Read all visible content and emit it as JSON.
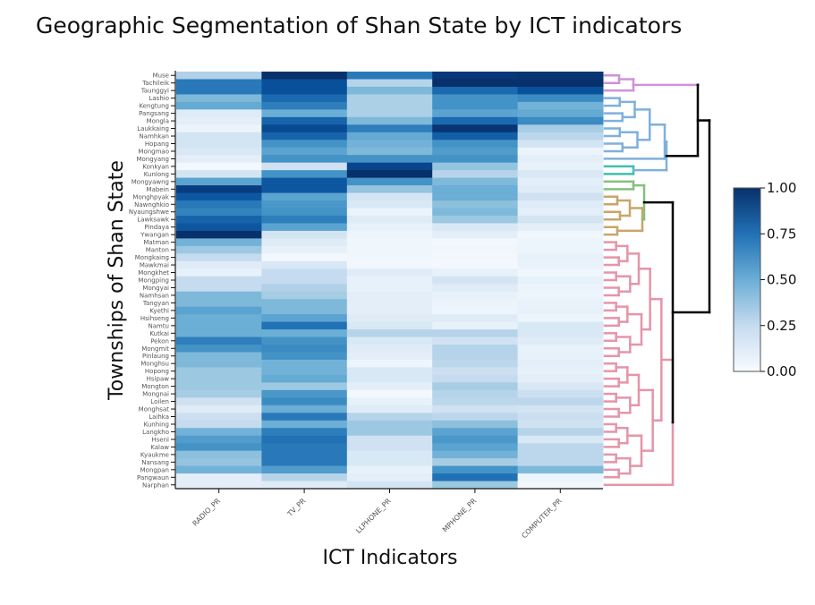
{
  "chart_data": {
    "type": "heatmap",
    "title": "Geographic Segmentation of Shan State by ICT indicators",
    "xlabel": "ICT Indicators",
    "ylabel": "Townships of Shan State",
    "columns": [
      "RADIO_PR",
      "TV_PR",
      "LLPHONE_PR",
      "MPHONE_PR",
      "COMPUTER_PR"
    ],
    "rows": [
      "Muse",
      "Tachileik",
      "Taunggyi",
      "Lashio",
      "Kengtung",
      "Pangsang",
      "Mongla",
      "Laukkaing",
      "Namhkan",
      "Hopang",
      "Mongmao",
      "Mongyang",
      "Konkyan",
      "Kunlong",
      "Mongyawng",
      "Mabein",
      "Monghpyak",
      "Nawnghkio",
      "Nyaungshwe",
      "Lawksawk",
      "Pindaya",
      "Ywangan",
      "Matman",
      "Manton",
      "Mongkaing",
      "Mawkmai",
      "Mongkhet",
      "Mongping",
      "Mongyai",
      "Namhsan",
      "Tangyan",
      "Kyethi",
      "Hsihseng",
      "Namtu",
      "Kutkai",
      "Pekon",
      "Mongmit",
      "Pinlaung",
      "Monghsu",
      "Hopong",
      "Hsipaw",
      "Mongton",
      "Mongnai",
      "Loilen",
      "Monghsat",
      "Laihka",
      "Kunhing",
      "Langkho",
      "Hseni",
      "Kalaw",
      "Kyaukme",
      "Nansang",
      "Mongpan",
      "Pangwaun",
      "Narphan"
    ],
    "values": [
      [
        0.32,
        1.0,
        0.72,
        0.97,
        0.98
      ],
      [
        0.72,
        0.88,
        0.3,
        1.0,
        1.0
      ],
      [
        0.72,
        0.88,
        0.45,
        0.78,
        0.88
      ],
      [
        0.45,
        0.78,
        0.33,
        0.62,
        0.65
      ],
      [
        0.52,
        0.7,
        0.33,
        0.62,
        0.48
      ],
      [
        0.12,
        0.5,
        0.33,
        0.55,
        0.52
      ],
      [
        0.1,
        0.8,
        0.45,
        0.78,
        0.65
      ],
      [
        0.06,
        0.9,
        0.7,
        0.98,
        0.35
      ],
      [
        0.18,
        0.8,
        0.52,
        0.82,
        0.28
      ],
      [
        0.18,
        0.62,
        0.48,
        0.62,
        0.18
      ],
      [
        0.15,
        0.55,
        0.45,
        0.58,
        0.06
      ],
      [
        0.1,
        0.62,
        0.62,
        0.62,
        0.1
      ],
      [
        0.02,
        0.2,
        0.92,
        0.4,
        0.08
      ],
      [
        0.18,
        0.62,
        1.0,
        0.3,
        0.15
      ],
      [
        0.55,
        0.85,
        0.62,
        0.45,
        0.1
      ],
      [
        0.95,
        0.85,
        0.4,
        0.5,
        0.12
      ],
      [
        0.85,
        0.55,
        0.18,
        0.5,
        0.2
      ],
      [
        0.72,
        0.6,
        0.15,
        0.42,
        0.12
      ],
      [
        0.68,
        0.62,
        0.06,
        0.45,
        0.1
      ],
      [
        0.8,
        0.7,
        0.12,
        0.38,
        0.18
      ],
      [
        0.85,
        0.55,
        0.08,
        0.15,
        0.1
      ],
      [
        1.0,
        0.18,
        0.05,
        0.1,
        0.04
      ],
      [
        0.48,
        0.12,
        0.04,
        0.02,
        0.05
      ],
      [
        0.38,
        0.08,
        0.04,
        0.04,
        0.05
      ],
      [
        0.25,
        0.02,
        0.04,
        0.03,
        0.08
      ],
      [
        0.12,
        0.15,
        0.03,
        0.02,
        0.07
      ],
      [
        0.08,
        0.25,
        0.12,
        0.08,
        0.04
      ],
      [
        0.25,
        0.25,
        0.08,
        0.18,
        0.08
      ],
      [
        0.25,
        0.32,
        0.08,
        0.12,
        0.06
      ],
      [
        0.45,
        0.35,
        0.1,
        0.08,
        0.05
      ],
      [
        0.45,
        0.45,
        0.1,
        0.06,
        0.07
      ],
      [
        0.55,
        0.45,
        0.1,
        0.05,
        0.08
      ],
      [
        0.5,
        0.55,
        0.12,
        0.12,
        0.05
      ],
      [
        0.5,
        0.75,
        0.15,
        0.08,
        0.15
      ],
      [
        0.5,
        0.5,
        0.3,
        0.3,
        0.15
      ],
      [
        0.7,
        0.62,
        0.15,
        0.2,
        0.12
      ],
      [
        0.62,
        0.65,
        0.12,
        0.3,
        0.08
      ],
      [
        0.45,
        0.62,
        0.1,
        0.3,
        0.08
      ],
      [
        0.45,
        0.48,
        0.05,
        0.28,
        0.1
      ],
      [
        0.38,
        0.48,
        0.15,
        0.22,
        0.08
      ],
      [
        0.38,
        0.52,
        0.15,
        0.25,
        0.1
      ],
      [
        0.38,
        0.38,
        0.1,
        0.35,
        0.15
      ],
      [
        0.35,
        0.6,
        0.02,
        0.3,
        0.22
      ],
      [
        0.2,
        0.65,
        0.08,
        0.28,
        0.28
      ],
      [
        0.12,
        0.5,
        0.12,
        0.2,
        0.18
      ],
      [
        0.22,
        0.72,
        0.3,
        0.28,
        0.22
      ],
      [
        0.25,
        0.5,
        0.38,
        0.42,
        0.2
      ],
      [
        0.48,
        0.7,
        0.38,
        0.55,
        0.3
      ],
      [
        0.58,
        0.75,
        0.2,
        0.6,
        0.15
      ],
      [
        0.62,
        0.72,
        0.2,
        0.55,
        0.28
      ],
      [
        0.42,
        0.72,
        0.15,
        0.48,
        0.28
      ],
      [
        0.4,
        0.72,
        0.15,
        0.35,
        0.28
      ],
      [
        0.48,
        0.58,
        0.08,
        0.62,
        0.45
      ],
      [
        0.1,
        0.3,
        0.1,
        0.75,
        0.05
      ],
      [
        0.1,
        0.12,
        0.18,
        0.38,
        0.03
      ]
    ],
    "zlim": [
      0,
      1
    ],
    "colorbar": {
      "ticks": [
        "0.00",
        "0.25",
        "0.50",
        "0.75",
        "1.00"
      ],
      "colorscale": "Blues"
    },
    "dendrogram": {
      "side": "right",
      "clusters": [
        {
          "name": "cluster-1",
          "color": "#CE93D8",
          "rows": [
            "Muse",
            "Tachileik",
            "Taunggyi"
          ]
        },
        {
          "name": "cluster-2",
          "color": "#7FB0DD",
          "rows": [
            "Lashio",
            "Kengtung",
            "Pangsang",
            "Mongla",
            "Laukkaing",
            "Namhkan",
            "Hopang",
            "Mongmao",
            "Mongyang"
          ]
        },
        {
          "name": "cluster-3",
          "color": "#3FBFAE",
          "rows": [
            "Konkyan",
            "Kunlong"
          ]
        },
        {
          "name": "cluster-4",
          "color": "#86BF7E",
          "rows": [
            "Mongyawng",
            "Mabein"
          ]
        },
        {
          "name": "cluster-5",
          "color": "#C9A56A",
          "rows": [
            "Monghpyak",
            "Nawnghkio",
            "Nyaungshwe",
            "Lawksawk",
            "Pindaya",
            "Ywangan"
          ]
        },
        {
          "name": "cluster-6",
          "color": "#E595A8",
          "rows": [
            "Matman",
            "Manton",
            "Mongkaing",
            "Mawkmai",
            "Mongkhet",
            "Mongping",
            "Mongyai",
            "Namhsan",
            "Tangyan",
            "Kyethi",
            "Hsihseng",
            "Namtu",
            "Kutkai",
            "Pekon",
            "Mongmit",
            "Pinlaung",
            "Monghsu",
            "Hopong",
            "Hsipaw",
            "Mongton",
            "Mongnai",
            "Loilen",
            "Monghsat",
            "Laihka",
            "Kunhing",
            "Langkho",
            "Hseni",
            "Kalaw",
            "Kyaukme",
            "Nansang",
            "Mongpan",
            "Pangwaun",
            "Narphan"
          ]
        }
      ],
      "root_color": "#000000"
    }
  }
}
